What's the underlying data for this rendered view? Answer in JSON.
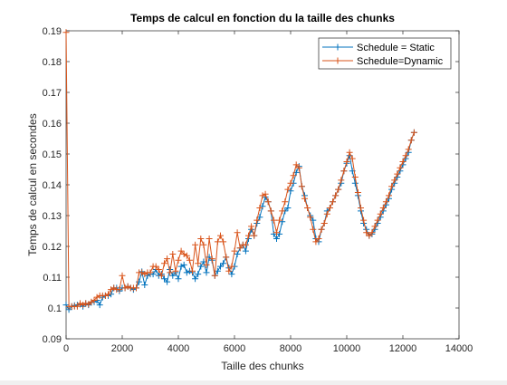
{
  "chart_data": {
    "type": "line",
    "title": "Temps de calcul en fonction du la taille des chunks",
    "xlabel": "Taille des chunks",
    "ylabel": "Temps de calcul en secondes",
    "xlim": [
      0,
      14000
    ],
    "ylim": [
      0.09,
      0.19
    ],
    "xticks": [
      0,
      2000,
      4000,
      6000,
      8000,
      10000,
      12000,
      14000
    ],
    "xtick_labels": [
      "0",
      "2000",
      "4000",
      "6000",
      "8000",
      "10000",
      "12000",
      "14000"
    ],
    "yticks": [
      0.09,
      0.1,
      0.11,
      0.12,
      0.13,
      0.14,
      0.15,
      0.16,
      0.17,
      0.18,
      0.19
    ],
    "ytick_labels": [
      "0.09",
      "0.1",
      "0.11",
      "0.12",
      "0.13",
      "0.14",
      "0.15",
      "0.16",
      "0.17",
      "0.18",
      "0.19"
    ],
    "grid": false,
    "legend_position": "top-right",
    "series": [
      {
        "name": "Schedule = Static",
        "color": "#0072BD",
        "marker": "+",
        "x": [
          0,
          100,
          200,
          300,
          400,
          500,
          600,
          700,
          800,
          900,
          1000,
          1100,
          1200,
          1300,
          1400,
          1500,
          1600,
          1700,
          1800,
          1900,
          2000,
          2100,
          2200,
          2300,
          2400,
          2500,
          2600,
          2700,
          2800,
          2900,
          3000,
          3100,
          3200,
          3300,
          3400,
          3500,
          3600,
          3700,
          3800,
          3900,
          4000,
          4100,
          4200,
          4300,
          4400,
          4500,
          4600,
          4700,
          4800,
          4900,
          5000,
          5100,
          5200,
          5300,
          5400,
          5500,
          5600,
          5700,
          5800,
          5900,
          6000,
          6100,
          6200,
          6300,
          6400,
          6500,
          6600,
          6700,
          6800,
          6900,
          7000,
          7100,
          7200,
          7300,
          7400,
          7500,
          7600,
          7700,
          7800,
          7900,
          8000,
          8100,
          8200,
          8300,
          8400,
          8500,
          8600,
          8700,
          8800,
          8900,
          9000,
          9100,
          9200,
          9300,
          9400,
          9500,
          9600,
          9700,
          9800,
          9900,
          10000,
          10100,
          10200,
          10300,
          10400,
          10500,
          10600,
          10700,
          10800,
          10900,
          11000,
          11100,
          11200,
          11300,
          11400,
          11500,
          11600,
          11700,
          11800,
          11900,
          12000,
          12100,
          12200,
          12300,
          12400
        ],
        "y": [
          0.101,
          0.0995,
          0.1005,
          0.1008,
          0.101,
          0.1012,
          0.1005,
          0.1015,
          0.101,
          0.1018,
          0.102,
          0.1025,
          0.101,
          0.1035,
          0.104,
          0.104,
          0.1045,
          0.1065,
          0.1065,
          0.1055,
          0.1065,
          0.1065,
          0.107,
          0.1065,
          0.106,
          0.1065,
          0.1085,
          0.1118,
          0.1075,
          0.1105,
          0.111,
          0.111,
          0.1125,
          0.1105,
          0.111,
          0.1095,
          0.1085,
          0.1125,
          0.1105,
          0.1115,
          0.1095,
          0.1135,
          0.114,
          0.1115,
          0.112,
          0.1115,
          0.1095,
          0.111,
          0.1135,
          0.115,
          0.1115,
          0.1165,
          0.1155,
          0.1105,
          0.112,
          0.1135,
          0.1145,
          0.1165,
          0.113,
          0.111,
          0.1135,
          0.1175,
          0.1195,
          0.1205,
          0.1185,
          0.1225,
          0.1255,
          0.1235,
          0.1275,
          0.1295,
          0.133,
          0.136,
          0.1345,
          0.1315,
          0.124,
          0.1225,
          0.124,
          0.128,
          0.1315,
          0.1325,
          0.138,
          0.1405,
          0.144,
          0.146,
          0.1395,
          0.1365,
          0.1325,
          0.13,
          0.1285,
          0.1225,
          0.1215,
          0.1255,
          0.1275,
          0.1315,
          0.1325,
          0.1345,
          0.1365,
          0.1385,
          0.1405,
          0.1445,
          0.147,
          0.1495,
          0.1445,
          0.1405,
          0.1365,
          0.1315,
          0.1275,
          0.1255,
          0.1235,
          0.124,
          0.1255,
          0.1275,
          0.1295,
          0.1315,
          0.1335,
          0.1355,
          0.1385,
          0.1405,
          0.1425,
          0.1445,
          0.1465,
          0.1485,
          0.1505,
          0.1545,
          0.157
        ]
      },
      {
        "name": "Schedule=Dynamic",
        "color": "#D95319",
        "marker": "+",
        "x": [
          0,
          100,
          200,
          300,
          400,
          500,
          600,
          700,
          800,
          900,
          1000,
          1100,
          1200,
          1300,
          1400,
          1500,
          1600,
          1700,
          1800,
          1900,
          2000,
          2100,
          2200,
          2300,
          2400,
          2500,
          2600,
          2700,
          2800,
          2900,
          3000,
          3100,
          3200,
          3300,
          3400,
          3500,
          3600,
          3700,
          3800,
          3900,
          4000,
          4100,
          4200,
          4300,
          4400,
          4500,
          4600,
          4700,
          4800,
          4900,
          5000,
          5100,
          5200,
          5300,
          5400,
          5500,
          5600,
          5700,
          5800,
          5900,
          6000,
          6100,
          6200,
          6300,
          6400,
          6500,
          6600,
          6700,
          6800,
          6900,
          7000,
          7100,
          7200,
          7300,
          7400,
          7500,
          7600,
          7700,
          7800,
          7900,
          8000,
          8100,
          8200,
          8300,
          8400,
          8500,
          8600,
          8700,
          8800,
          8900,
          9000,
          9100,
          9200,
          9300,
          9400,
          9500,
          9600,
          9700,
          9800,
          9900,
          10000,
          10100,
          10200,
          10300,
          10400,
          10500,
          10600,
          10700,
          10800,
          10900,
          11000,
          11100,
          11200,
          11300,
          11400,
          11500,
          11600,
          11700,
          11800,
          11900,
          12000,
          12100,
          12200,
          12300,
          12400
        ],
        "y": [
          0.1895,
          0.1005,
          0.1005,
          0.1005,
          0.1005,
          0.1015,
          0.101,
          0.1015,
          0.1012,
          0.102,
          0.1025,
          0.1035,
          0.104,
          0.104,
          0.104,
          0.1045,
          0.106,
          0.1065,
          0.106,
          0.106,
          0.1105,
          0.1065,
          0.107,
          0.1065,
          0.1065,
          0.1065,
          0.1115,
          0.1115,
          0.111,
          0.1115,
          0.1115,
          0.1135,
          0.1135,
          0.1125,
          0.1105,
          0.1145,
          0.116,
          0.1115,
          0.1175,
          0.112,
          0.1155,
          0.1185,
          0.1175,
          0.117,
          0.1155,
          0.112,
          0.1205,
          0.1145,
          0.1225,
          0.1205,
          0.114,
          0.1225,
          0.116,
          0.1105,
          0.1215,
          0.1235,
          0.1215,
          0.1165,
          0.112,
          0.1135,
          0.1185,
          0.1245,
          0.1195,
          0.1205,
          0.1205,
          0.1235,
          0.1265,
          0.1235,
          0.1285,
          0.1325,
          0.1365,
          0.137,
          0.1345,
          0.1315,
          0.1285,
          0.1245,
          0.1285,
          0.1315,
          0.1345,
          0.1385,
          0.1405,
          0.143,
          0.1465,
          0.1455,
          0.1395,
          0.1355,
          0.1325,
          0.1295,
          0.1255,
          0.1215,
          0.1225,
          0.1255,
          0.1275,
          0.1305,
          0.1325,
          0.1345,
          0.1365,
          0.1385,
          0.1415,
          0.1445,
          0.1475,
          0.1505,
          0.1485,
          0.1425,
          0.1375,
          0.1325,
          0.1285,
          0.1245,
          0.1235,
          0.1245,
          0.1265,
          0.1285,
          0.1305,
          0.1325,
          0.1345,
          0.1365,
          0.1395,
          0.1415,
          0.1435,
          0.1455,
          0.1475,
          0.1495,
          0.1515,
          0.1545,
          0.157
        ]
      }
    ]
  }
}
